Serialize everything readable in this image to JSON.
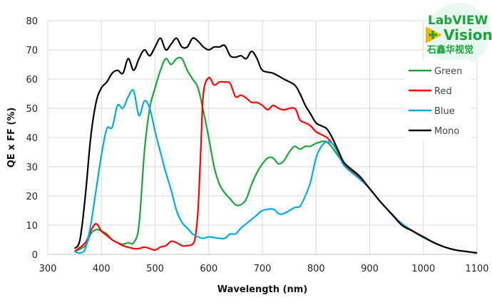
{
  "chart_data": {
    "type": "line",
    "title": "",
    "xlabel": "Wavelength (nm)",
    "ylabel": "QE x FF (%)",
    "xlim": [
      300,
      1100
    ],
    "ylim": [
      0,
      80
    ],
    "xticks": [
      300,
      400,
      500,
      600,
      700,
      800,
      900,
      1000,
      1100
    ],
    "yticks": [
      0,
      10,
      20,
      30,
      40,
      50,
      60,
      70,
      80
    ],
    "grid": true,
    "legend_position": "top-right",
    "series": [
      {
        "name": "Green",
        "color": "#1aa33a",
        "x": [
          350,
          370,
          380,
          390,
          400,
          410,
          420,
          430,
          440,
          450,
          460,
          470,
          480,
          490,
          500,
          510,
          520,
          530,
          540,
          550,
          560,
          570,
          580,
          590,
          600,
          610,
          620,
          630,
          640,
          650,
          660,
          670,
          680,
          690,
          700,
          710,
          720,
          730,
          740,
          750,
          760,
          770,
          780,
          790,
          800,
          820,
          840,
          850,
          860,
          880,
          900,
          920,
          940,
          960,
          980,
          1000,
          1020,
          1040,
          1060,
          1080,
          1100
        ],
        "y": [
          1,
          3,
          7,
          8.5,
          8,
          7,
          5,
          4,
          3.5,
          4,
          4,
          10,
          35,
          50,
          57,
          63,
          67,
          65,
          67,
          67,
          63,
          60,
          57,
          49,
          40,
          30,
          24,
          21,
          19,
          17,
          17,
          19,
          24,
          28,
          31,
          33,
          33,
          31,
          32,
          35,
          37,
          36,
          37,
          37,
          38,
          38.5,
          34,
          31.5,
          29.5,
          26.5,
          22.5,
          18,
          14,
          10.5,
          8,
          5.8,
          4,
          2.5,
          1.5,
          1,
          0.5
        ]
      },
      {
        "name": "Red",
        "color": "#ff0000",
        "x": [
          350,
          370,
          380,
          390,
          400,
          410,
          420,
          430,
          440,
          460,
          470,
          480,
          490,
          500,
          510,
          520,
          530,
          540,
          550,
          560,
          570,
          575,
          580,
          585,
          590,
          600,
          610,
          620,
          630,
          640,
          650,
          660,
          670,
          680,
          690,
          700,
          710,
          720,
          730,
          740,
          760,
          770,
          780,
          790,
          800,
          820,
          830,
          840,
          850,
          860,
          880,
          900,
          920,
          940,
          960,
          980,
          1000,
          1020,
          1040,
          1060,
          1080,
          1100
        ],
        "y": [
          1,
          4,
          8,
          10.5,
          8,
          6.5,
          5,
          4,
          3,
          2,
          2,
          2.5,
          2,
          1.5,
          2.5,
          3,
          4.5,
          4,
          3,
          3,
          3.5,
          6,
          15,
          35,
          55,
          60.5,
          58,
          59,
          59,
          58.5,
          54,
          54.5,
          53.5,
          52,
          52,
          51,
          49.5,
          51,
          50,
          49.5,
          50,
          46,
          45,
          44,
          42,
          40,
          38,
          36,
          32,
          29.5,
          26.5,
          22.5,
          18,
          14,
          10.5,
          8,
          5.8,
          4,
          2.5,
          1.5,
          1,
          0.5
        ]
      },
      {
        "name": "Blue",
        "color": "#00a8e8",
        "x": [
          350,
          360,
          370,
          380,
          390,
          400,
          410,
          420,
          430,
          440,
          450,
          460,
          470,
          480,
          490,
          500,
          510,
          520,
          530,
          540,
          550,
          560,
          570,
          580,
          590,
          600,
          620,
          630,
          640,
          650,
          660,
          670,
          680,
          690,
          700,
          720,
          730,
          740,
          760,
          770,
          780,
          790,
          800,
          810,
          820,
          830,
          840,
          850,
          860,
          880,
          900,
          920,
          940,
          960,
          980,
          1000,
          1020,
          1040,
          1060,
          1080,
          1100
        ],
        "y": [
          1,
          0.5,
          2,
          10,
          22,
          34,
          43,
          43.5,
          51,
          50,
          54,
          56,
          47.5,
          52.5,
          50,
          42,
          35,
          28,
          22,
          15,
          11,
          9,
          7,
          6,
          5.5,
          6,
          5.5,
          5.5,
          7,
          7,
          9,
          10.5,
          12,
          13.5,
          15,
          15.5,
          14,
          14,
          16,
          16.5,
          20,
          25,
          33,
          37,
          38.5,
          38,
          35,
          31,
          29,
          26,
          22.5,
          18,
          14,
          10.5,
          8,
          5.8,
          4,
          2.5,
          1.5,
          1,
          0.5
        ]
      },
      {
        "name": "Mono",
        "color": "#000000",
        "x": [
          350,
          360,
          370,
          380,
          390,
          400,
          410,
          420,
          430,
          440,
          450,
          460,
          470,
          480,
          490,
          500,
          510,
          520,
          530,
          540,
          550,
          560,
          570,
          580,
          590,
          600,
          610,
          620,
          630,
          640,
          650,
          660,
          670,
          680,
          690,
          700,
          720,
          740,
          760,
          770,
          780,
          790,
          800,
          810,
          820,
          830,
          840,
          850,
          860,
          880,
          900,
          920,
          940,
          960,
          980,
          1000,
          1020,
          1040,
          1060,
          1080,
          1100
        ],
        "y": [
          2,
          5,
          20,
          40,
          52,
          57,
          59,
          62,
          63,
          62,
          67,
          63,
          67,
          70,
          68,
          71,
          74,
          70,
          72,
          74,
          71,
          71,
          74,
          73,
          71,
          70,
          71,
          71,
          71.5,
          68,
          67.5,
          68,
          67,
          69.5,
          67,
          63,
          62,
          60,
          58,
          55,
          51,
          48,
          45,
          44,
          43,
          40,
          36,
          32,
          30,
          27,
          22.5,
          18,
          14,
          10,
          8,
          6,
          4,
          2.5,
          1.5,
          1,
          0.5
        ]
      }
    ]
  },
  "logo": {
    "line1": "LabVIEW",
    "line2": "Vision",
    "line3": "石鑫华视觉"
  }
}
